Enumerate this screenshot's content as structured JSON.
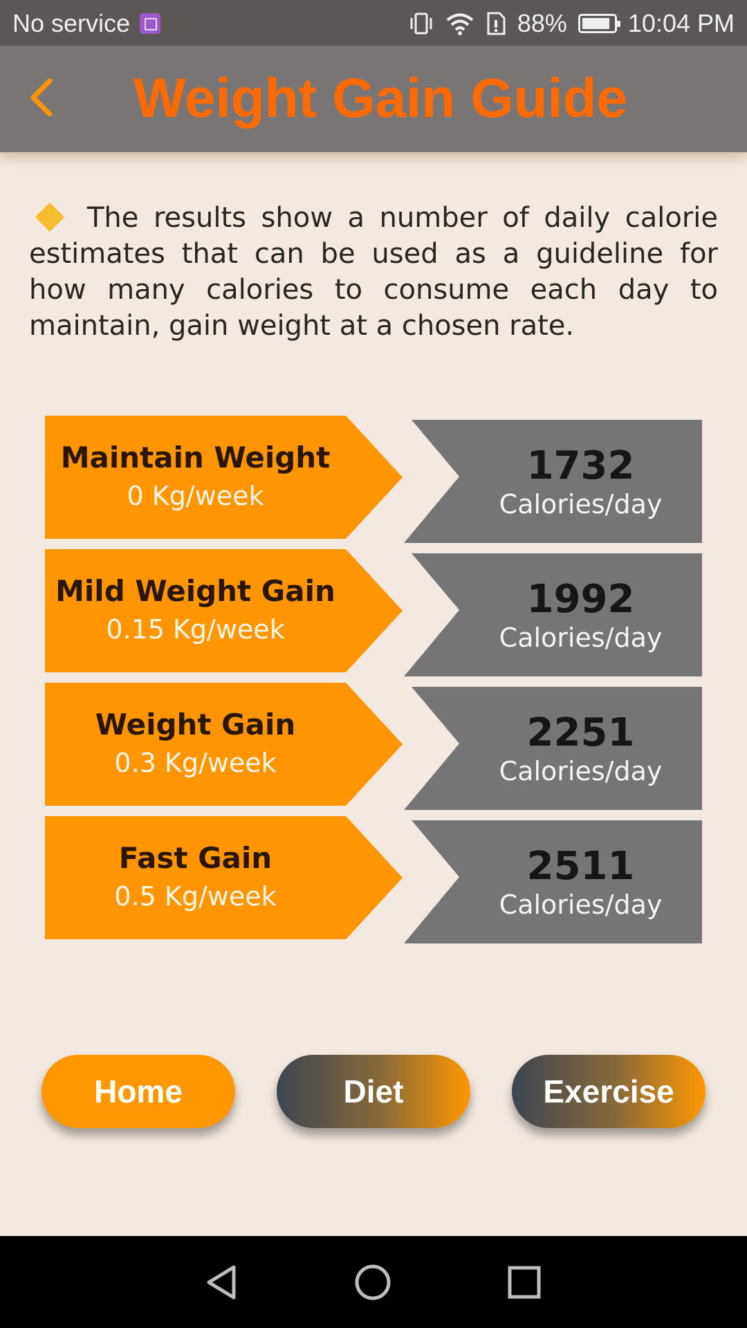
{
  "status_bar": {
    "carrier": "No service",
    "battery_percent": "88%",
    "battery_level": 0.88,
    "time": "10:04 PM",
    "icons": [
      "image-icon",
      "vibrate-icon",
      "wifi-icon",
      "data-saver-icon",
      "battery-icon"
    ]
  },
  "header": {
    "title": "Weight Gain Guide",
    "back_icon": "chevron-left-icon"
  },
  "description": {
    "bullet_icon": "diamond-icon",
    "text": "The results show a number of daily calorie estimates that can be used as a guideline for how many calories to consume each day to maintain, gain weight at a chosen rate."
  },
  "results": [
    {
      "goal": "Maintain Weight",
      "rate": "0 Kg/week",
      "calories": "1732",
      "unit": "Calories/day"
    },
    {
      "goal": "Mild Weight Gain",
      "rate": "0.15 Kg/week",
      "calories": "1992",
      "unit": "Calories/day"
    },
    {
      "goal": "Weight Gain",
      "rate": "0.3 Kg/week",
      "calories": "2251",
      "unit": "Calories/day"
    },
    {
      "goal": "Fast Gain",
      "rate": "0.5 Kg/week",
      "calories": "2511",
      "unit": "Calories/day"
    }
  ],
  "buttons": {
    "home": "Home",
    "diet": "Diet",
    "exercise": "Exercise"
  },
  "colors": {
    "accent": "#ff6a00",
    "goal_box": "#ff9500",
    "calorie_box": "#767575",
    "background": "#f3e9e0"
  },
  "nav_bar": {
    "icons": [
      "nav-back-icon",
      "nav-home-icon",
      "nav-recent-icon"
    ]
  }
}
